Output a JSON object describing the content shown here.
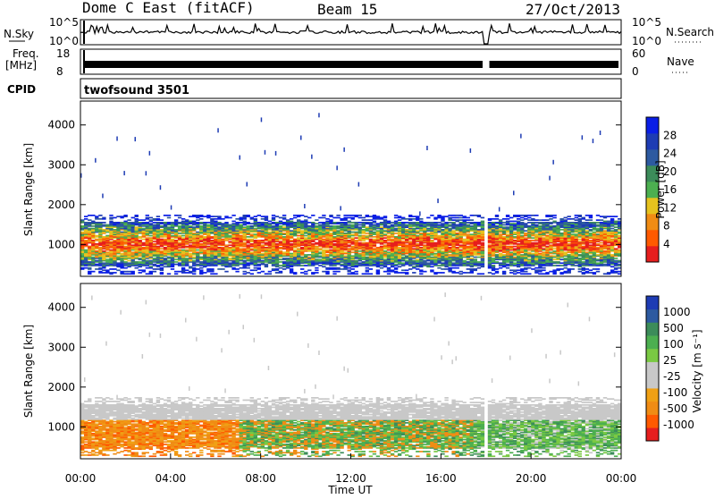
{
  "header": {
    "station": "Dome C East (fitACF)",
    "beam": "Beam 15",
    "date": "27/Oct/2013"
  },
  "panels_top": {
    "nsky_label": "N.Sky",
    "nsky_ticks": [
      "10^5",
      "10^0"
    ],
    "nsearch_label": "N.Search",
    "nsearch_ticks": [
      "10^5",
      "10^0"
    ],
    "freq_label": "Freq.",
    "freq_unit": "[MHz]",
    "freq_ticks": [
      "18",
      "8"
    ],
    "nave_label": "Nave",
    "nave_ticks": [
      "60",
      "0"
    ],
    "cpid_label": "CPID",
    "cpid_value": "twofsound 3501"
  },
  "colors": {
    "power": [
      "#0a1ee6",
      "#1e3cb4",
      "#2d5aa0",
      "#3c8c5a",
      "#4caf50",
      "#e6c21e",
      "#f08c14",
      "#ff5a00",
      "#e61e1e"
    ],
    "velocity": [
      "#1e3cb4",
      "#2d5aa0",
      "#3c8c5a",
      "#4caf50",
      "#7ac943",
      "#c8c8c8",
      "#c8c8c8",
      "#f0a014",
      "#f08c14",
      "#ff5a00",
      "#e61e1e"
    ]
  },
  "chart_data": [
    {
      "type": "heatmap",
      "ylabel": "Slant Range [km]",
      "ylim": [
        200,
        4600
      ],
      "yticks": [
        "4000",
        "3000",
        "2000",
        "1000"
      ],
      "xlim": [
        "00:00",
        "24:00"
      ],
      "colorbar_label": "Power [dB]",
      "colorbar_ticks": [
        "28",
        "24",
        "20",
        "16",
        "12",
        "8",
        "4"
      ],
      "dominant_echo_band_km": [
        500,
        1600
      ],
      "data_gap_ut": [
        17.85,
        18.15
      ]
    },
    {
      "type": "heatmap",
      "ylabel": "Slant Range [km]",
      "ylim": [
        200,
        4600
      ],
      "yticks": [
        "4000",
        "3000",
        "2000",
        "1000"
      ],
      "xlabel": "Time UT",
      "xticks": [
        "00:00",
        "04:00",
        "08:00",
        "12:00",
        "16:00",
        "20:00",
        "00:00"
      ],
      "colorbar_label": "Velocity [m s⁻¹]",
      "colorbar_ticks": [
        "1000",
        "500",
        "100",
        "25",
        "-25",
        "-100",
        "-500",
        "-1000"
      ],
      "dominant_echo_band_km": [
        500,
        1700
      ],
      "data_gap_ut": [
        17.85,
        18.15
      ]
    }
  ]
}
